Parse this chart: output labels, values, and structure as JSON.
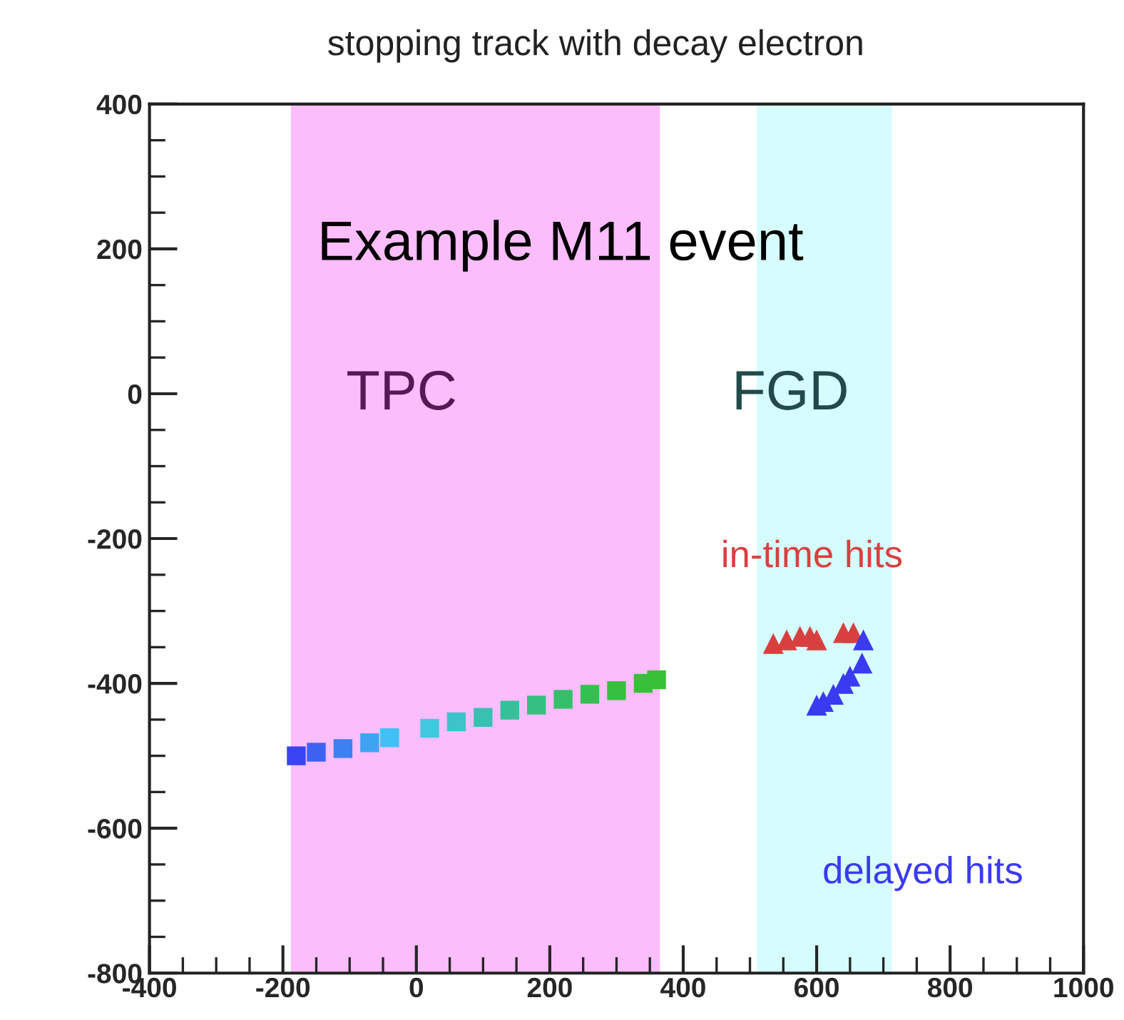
{
  "chart_data": {
    "type": "scatter",
    "title": "stopping track with decay electron",
    "xlim": [
      -400,
      1000
    ],
    "xticks": [
      -400,
      -200,
      0,
      200,
      400,
      600,
      800,
      1000
    ],
    "ylim": [
      -800,
      400
    ],
    "yticks": [
      -800,
      -600,
      -400,
      -200,
      0,
      200,
      400
    ],
    "grid": false,
    "legend": false,
    "annotations": [
      "Example M11 event"
    ],
    "bands": [
      {
        "axis": "x",
        "from": -188,
        "to": 365,
        "label": "TPC",
        "color": "#fbbdfb"
      },
      {
        "axis": "x",
        "from": 510,
        "to": 713,
        "label": "FGD",
        "color": "#d6fdfd"
      }
    ],
    "series": [
      {
        "marker": "square",
        "x": [
          -180,
          -150,
          -110,
          -70,
          -40,
          20,
          60,
          100,
          140,
          180,
          220,
          260,
          300,
          340,
          360
        ],
        "values": [
          -500,
          -495,
          -490,
          -482,
          -475,
          -462,
          -453,
          -447,
          -437,
          -430,
          -422,
          -415,
          -410,
          -400,
          -395
        ],
        "colors": [
          "#3a45f2",
          "#3c62f2",
          "#3c80f2",
          "#3ea4f2",
          "#40c0f4",
          "#40c8e0",
          "#3cc4c8",
          "#38c0b0",
          "#36c098",
          "#34c080",
          "#34c068",
          "#34c050",
          "#36c040",
          "#38c038",
          "#38c038"
        ]
      },
      {
        "name": "in-time hits",
        "color": "#d84040",
        "marker": "triangle",
        "x": [
          535,
          555,
          575,
          590,
          600,
          640,
          655
        ],
        "values": [
          -345,
          -340,
          -335,
          -335,
          -340,
          -330,
          -330
        ]
      },
      {
        "name": "delayed hits",
        "color": "#3a3af0",
        "marker": "triangle",
        "x": [
          670,
          668,
          650,
          640,
          625,
          610,
          600
        ],
        "values": [
          -340,
          -372,
          -390,
          -400,
          -415,
          -425,
          -430
        ]
      }
    ]
  }
}
